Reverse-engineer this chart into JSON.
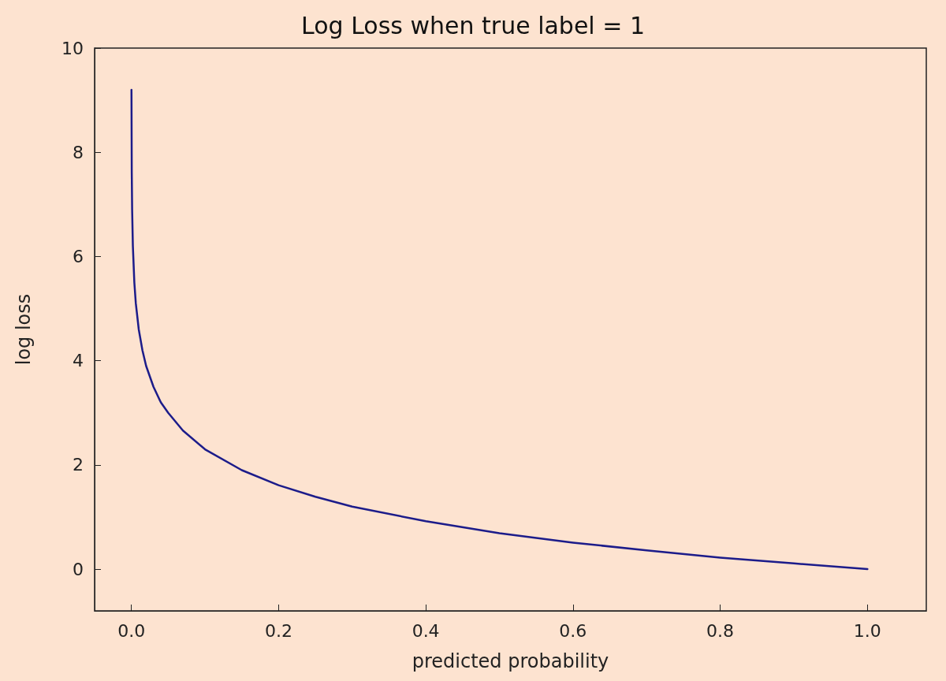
{
  "chart_data": {
    "type": "line",
    "title": "Log Loss when true label = 1",
    "xlabel": "predicted probability",
    "ylabel": "log loss",
    "x": [
      0.0001,
      0.0005,
      0.001,
      0.002,
      0.004,
      0.006,
      0.01,
      0.015,
      0.02,
      0.03,
      0.04,
      0.05,
      0.07,
      0.1,
      0.15,
      0.2,
      0.25,
      0.3,
      0.4,
      0.5,
      0.6,
      0.7,
      0.8,
      0.9,
      1.0
    ],
    "series": [
      {
        "color": "#1c1c8a",
        "values": [
          9.2,
          7.6,
          6.9,
          6.2,
          5.5,
          5.1,
          4.6,
          4.2,
          3.9,
          3.5,
          3.2,
          3.0,
          2.66,
          2.3,
          1.9,
          1.61,
          1.39,
          1.2,
          0.92,
          0.69,
          0.51,
          0.36,
          0.22,
          0.11,
          0.0
        ]
      }
    ],
    "xlim": [
      -0.05,
      1.08
    ],
    "ylim": [
      -0.8,
      10
    ],
    "xticks": [
      {
        "value": 0,
        "label": "0.0"
      },
      {
        "value": 0.2,
        "label": "0.2"
      },
      {
        "value": 0.4,
        "label": "0.4"
      },
      {
        "value": 0.6,
        "label": "0.6"
      },
      {
        "value": 0.8,
        "label": "0.8"
      },
      {
        "value": 1,
        "label": "1.0"
      }
    ],
    "yticks": [
      0,
      2,
      4,
      6,
      8,
      10
    ],
    "grid": false,
    "marker": "none",
    "line_style": "solid"
  }
}
